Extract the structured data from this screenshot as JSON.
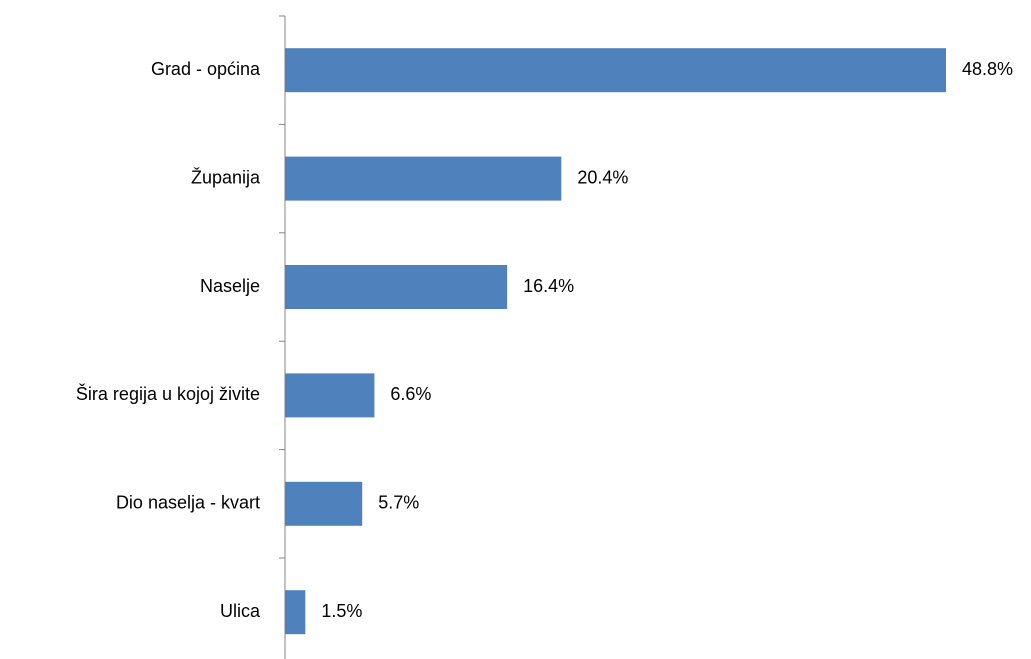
{
  "chart_data": {
    "type": "hbar",
    "categories": [
      "Grad - općina",
      "Županija",
      "Naselje",
      "Šira regija u kojoj živite",
      "Dio naselja - kvart",
      "Ulica"
    ],
    "values": [
      48.8,
      20.4,
      16.4,
      6.6,
      5.7,
      1.5
    ],
    "value_labels": [
      "48.8%",
      "20.4%",
      "16.4%",
      "6.6%",
      "5.7%",
      "1.5%"
    ],
    "color": "#4f81bd"
  }
}
